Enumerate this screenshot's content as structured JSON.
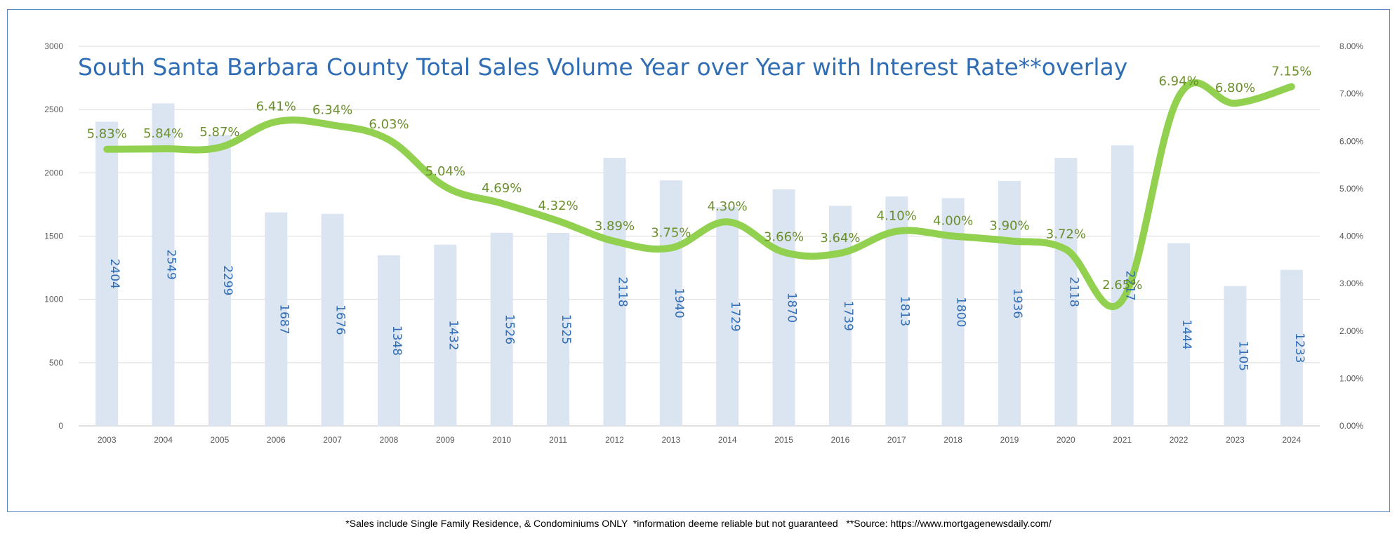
{
  "chart_data": {
    "type": "bar",
    "title": "South Santa Barbara County Total Sales Volume Year over Year with Interest Rate**overlay",
    "categories": [
      "2003",
      "2004",
      "2005",
      "2006",
      "2007",
      "2008",
      "2009",
      "2010",
      "2011",
      "2012",
      "2013",
      "2014",
      "2015",
      "2016",
      "2017",
      "2018",
      "2019",
      "2020",
      "2021",
      "2022",
      "2023",
      "2024"
    ],
    "series": [
      {
        "type": "bar",
        "axis": "left",
        "values": [
          2404,
          2549,
          2299,
          1687,
          1676,
          1348,
          1432,
          1526,
          1525,
          2118,
          1940,
          1729,
          1870,
          1739,
          1813,
          1800,
          1936,
          2118,
          2217,
          1444,
          1105,
          1233
        ],
        "labels": [
          "2404",
          "2549",
          "2299",
          "1687",
          "1676",
          "1348",
          "1432",
          "1526",
          "1525",
          "2118",
          "1940",
          "1729",
          "1870",
          "1739",
          "1813",
          "1800",
          "1936",
          "2118",
          "2217",
          "1444",
          "1105",
          "1233"
        ]
      },
      {
        "type": "line",
        "axis": "right",
        "values": [
          5.83,
          5.84,
          5.87,
          6.41,
          6.34,
          6.03,
          5.04,
          4.69,
          4.32,
          3.89,
          3.75,
          4.3,
          3.66,
          3.64,
          4.1,
          4.0,
          3.9,
          3.72,
          2.65,
          6.94,
          6.8,
          7.15
        ],
        "labels": [
          "5.83%",
          "5.84%",
          "5.87%",
          "6.41%",
          "6.34%",
          "6.03%",
          "5.04%",
          "4.69%",
          "4.32%",
          "3.89%",
          "3.75%",
          "4.30%",
          "3.66%",
          "3.64%",
          "4.10%",
          "4.00%",
          "3.90%",
          "3.72%",
          "2.65%",
          "6.94%",
          "6.80%",
          "7.15%"
        ]
      }
    ],
    "y_left": {
      "range": [
        0,
        3000
      ],
      "ticks": [
        "0",
        "500",
        "1000",
        "1500",
        "2000",
        "2500",
        "3000"
      ]
    },
    "y_right": {
      "range": [
        0,
        8
      ],
      "ticks": [
        "0.00%",
        "1.00%",
        "2.00%",
        "3.00%",
        "4.00%",
        "5.00%",
        "6.00%",
        "7.00%",
        "8.00%"
      ]
    },
    "grid": true,
    "colors": {
      "bar": "#dbe4f1",
      "line": "#92d050",
      "title": "#2f6db5",
      "bar_label": "#2f6db5",
      "rate_label": "#6a8f2b",
      "grid": "#d9d9d9",
      "frame": "#5b86c0"
    }
  },
  "footnote": "*Sales include Single Family Residence, & Condominiums ONLY  *information deeme reliable but not guaranteed   **Source: https://www.mortgagenewsdaily.com/"
}
